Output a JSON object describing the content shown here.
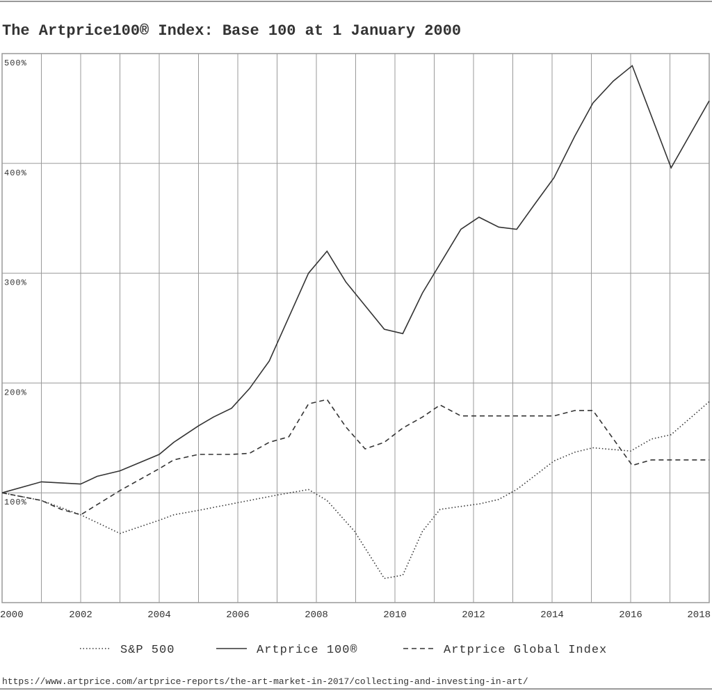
{
  "chart_data": {
    "type": "line",
    "title": "The Artprice100® Index: Base 100 at 1 January 2000",
    "source": "https://www.artprice.com/artprice-reports/the-art-market-in-2017/collecting-and-investing-in-art/",
    "xlim": [
      2000,
      2018
    ],
    "xticks": [
      2000,
      2002,
      2004,
      2006,
      2008,
      2010,
      2012,
      2014,
      2016,
      2018
    ],
    "ylim": [
      0,
      500
    ],
    "yticks": [
      {
        "value": 100,
        "label": "100%"
      },
      {
        "value": 200,
        "label": "200%"
      },
      {
        "value": 300,
        "label": "300%"
      },
      {
        "value": 400,
        "label": "400%"
      },
      {
        "value": 500,
        "label": "500%"
      }
    ],
    "grid": true,
    "legend": "bottom",
    "series": [
      {
        "name": "S&P 500",
        "color": "#333333",
        "style": "dotted",
        "x": [
          2000,
          2001,
          2002,
          2003,
          2004,
          2004.37,
          2005,
          2006,
          2007,
          2007.8,
          2008.27,
          2008.97,
          2009.73,
          2010.2,
          2010.7,
          2011.15,
          2012.16,
          2012.64,
          2013.1,
          2014.05,
          2014.58,
          2015.04,
          2016,
          2016.53,
          2017.03,
          2018
        ],
        "values": [
          100,
          93,
          80,
          63,
          75,
          80,
          84,
          91,
          98,
          103,
          93,
          65,
          22,
          25,
          65,
          85,
          90,
          94,
          103,
          129,
          137,
          141,
          138,
          149,
          153,
          183
        ]
      },
      {
        "name": "Artprice 100®",
        "color": "#333333",
        "style": "solid",
        "x": [
          2000,
          2001,
          2002,
          2002.42,
          2003,
          2004,
          2004.37,
          2005,
          2005.38,
          2005.84,
          2006.3,
          2006.8,
          2007.8,
          2008.27,
          2008.75,
          2009.73,
          2010.2,
          2010.7,
          2011.68,
          2012.14,
          2012.64,
          2013.1,
          2013.58,
          2014.05,
          2014.58,
          2015.04,
          2015.56,
          2016.04,
          2017.03,
          2018
        ],
        "values": [
          100,
          110,
          108,
          115,
          120,
          135,
          146,
          161,
          169,
          177,
          195,
          220,
          300,
          320,
          292,
          249,
          245,
          282,
          340,
          351,
          342,
          340,
          364,
          387,
          425,
          455,
          475,
          489,
          396,
          457
        ]
      },
      {
        "name": "Artprice Global Index",
        "color": "#333333",
        "style": "dashed",
        "x": [
          2000,
          2001,
          2001.5,
          2002,
          2003,
          2004,
          2004.37,
          2005,
          2005.84,
          2006.3,
          2006.8,
          2007.3,
          2007.8,
          2008.27,
          2008.75,
          2009.24,
          2009.73,
          2010.2,
          2010.7,
          2011.15,
          2011.68,
          2014.05,
          2014.58,
          2015.04,
          2016.04,
          2016.53,
          2018
        ],
        "values": [
          100,
          93,
          85,
          80,
          102,
          122,
          130,
          135,
          135,
          136,
          146,
          151,
          181,
          185,
          160,
          140,
          146,
          159,
          169,
          180,
          170,
          170,
          175,
          175,
          125,
          130,
          130
        ]
      }
    ]
  }
}
